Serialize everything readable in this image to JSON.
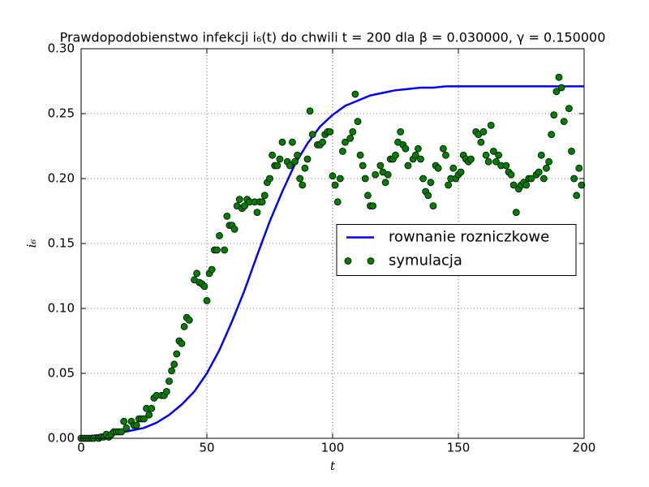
{
  "chart_data": {
    "type": "line",
    "title": "Prawdopodobienstwo infekcji i₆(t) do chwili t = 200 dla β = 0.030000, γ = 0.150000",
    "x_label": "t",
    "y_label": "i₆",
    "xlim": [
      0,
      200
    ],
    "xticks": [
      0,
      50,
      100,
      150,
      200
    ],
    "ylim": [
      0,
      0.3
    ],
    "yticks": [
      {
        "value": 0,
        "label": "0.00"
      },
      {
        "value": 0.05,
        "label": "0.05"
      },
      {
        "value": 0.1,
        "label": "0.10"
      },
      {
        "value": 0.15,
        "label": "0.15"
      },
      {
        "value": 0.2,
        "label": "0.20"
      },
      {
        "value": 0.25,
        "label": "0.25"
      },
      {
        "value": 0.3,
        "label": "0.30"
      }
    ],
    "grid": true,
    "legend": "center right",
    "series": [
      {
        "name": "rownanie rozniczkowe",
        "color": "#0000ff",
        "x": [
          0,
          5,
          10,
          15,
          20,
          25,
          30,
          35,
          40,
          45,
          50,
          55,
          60,
          65,
          70,
          75,
          80,
          85,
          90,
          95,
          100,
          105,
          110,
          115,
          120,
          125,
          130,
          135,
          140,
          145,
          150,
          155,
          160,
          165,
          170,
          175,
          180,
          185,
          190,
          195,
          200
        ],
        "values": [
          0.001,
          0.002,
          0.003,
          0.004,
          0.006,
          0.008,
          0.012,
          0.018,
          0.026,
          0.036,
          0.05,
          0.068,
          0.09,
          0.114,
          0.141,
          0.167,
          0.19,
          0.211,
          0.227,
          0.24,
          0.249,
          0.256,
          0.26,
          0.264,
          0.266,
          0.268,
          0.269,
          0.27,
          0.27,
          0.271,
          0.271,
          0.271,
          0.271,
          0.271,
          0.271,
          0.271,
          0.271,
          0.271,
          0.271,
          0.271,
          0.271
        ]
      },
      {
        "name": "symulacja",
        "color": "#008000",
        "marker": "o",
        "x": [
          0,
          1,
          2,
          3,
          4,
          5,
          7,
          8,
          9,
          10,
          11,
          12,
          13,
          14,
          15,
          16,
          17,
          18,
          20,
          21,
          22,
          23,
          24,
          25,
          26,
          27,
          28,
          29,
          30,
          32,
          33,
          34,
          35,
          36,
          37,
          38,
          39,
          40,
          41,
          42,
          43,
          45,
          46,
          47,
          48,
          49,
          50,
          51,
          52,
          53,
          54,
          55,
          57,
          58,
          59,
          60,
          61,
          62,
          63,
          64,
          65,
          66,
          67,
          69,
          70,
          71,
          72,
          73,
          74,
          75,
          76,
          77,
          78,
          79,
          80,
          82,
          83,
          84,
          85,
          86,
          87,
          88,
          89,
          90,
          91,
          92,
          94,
          95,
          96,
          97,
          98,
          99,
          100,
          101,
          102,
          103,
          104,
          105,
          107,
          108,
          109,
          110,
          111,
          112,
          113,
          114,
          115,
          116,
          117,
          119,
          120,
          121,
          122,
          123,
          124,
          125,
          126,
          127,
          128,
          129,
          130,
          132,
          133,
          134,
          135,
          136,
          137,
          138,
          139,
          140,
          141,
          142,
          144,
          145,
          146,
          147,
          148,
          149,
          150,
          151,
          152,
          153,
          154,
          155,
          157,
          158,
          159,
          160,
          161,
          162,
          163,
          164,
          165,
          166,
          167,
          169,
          170,
          171,
          172,
          173,
          174,
          175,
          176,
          177,
          178,
          179,
          181,
          182,
          183,
          184,
          185,
          186,
          187,
          188,
          189,
          190,
          191,
          192,
          194,
          195,
          196,
          197,
          198,
          199
        ],
        "values": [
          0,
          0,
          0,
          0,
          0,
          0,
          0,
          0.001,
          0.001,
          0.003,
          0.001,
          0.003,
          0.005,
          0.005,
          0.005,
          0.005,
          0.013,
          0.008,
          0.013,
          0.01,
          0.01,
          0.015,
          0.015,
          0.015,
          0.023,
          0.018,
          0.023,
          0.031,
          0.033,
          0.033,
          0.033,
          0.036,
          0.044,
          0.052,
          0.057,
          0.065,
          0.075,
          0.073,
          0.086,
          0.093,
          0.091,
          0.122,
          0.127,
          0.12,
          0.119,
          0.117,
          0.106,
          0.127,
          0.13,
          0.145,
          0.145,
          0.156,
          0.145,
          0.171,
          0.164,
          0.164,
          0.161,
          0.179,
          0.184,
          0.177,
          0.179,
          0.184,
          0.182,
          0.182,
          0.174,
          0.182,
          0.182,
          0.187,
          0.197,
          0.2,
          0.218,
          0.21,
          0.21,
          0.215,
          0.228,
          0.213,
          0.21,
          0.228,
          0.213,
          0.218,
          0.2,
          0.195,
          0.208,
          0.215,
          0.252,
          0.234,
          0.226,
          0.226,
          0.228,
          0.234,
          0.236,
          0.236,
          0.202,
          0.195,
          0.182,
          0.2,
          0.221,
          0.228,
          0.231,
          0.236,
          0.265,
          0.244,
          0.218,
          0.21,
          0.2,
          0.187,
          0.179,
          0.179,
          0.203,
          0.21,
          0.205,
          0.197,
          0.203,
          0.215,
          0.215,
          0.218,
          0.228,
          0.236,
          0.226,
          0.223,
          0.21,
          0.215,
          0.218,
          0.223,
          0.215,
          0.2,
          0.19,
          0.187,
          0.197,
          0.179,
          0.21,
          0.208,
          0.223,
          0.218,
          0.195,
          0.2,
          0.208,
          0.2,
          0.203,
          0.205,
          0.218,
          0.215,
          0.213,
          0.215,
          0.236,
          0.234,
          0.228,
          0.236,
          0.218,
          0.213,
          0.241,
          0.221,
          0.213,
          0.218,
          0.21,
          0.21,
          0.205,
          0.203,
          0.195,
          0.174,
          0.192,
          0.195,
          0.197,
          0.195,
          0.2,
          0.2,
          0.203,
          0.205,
          0.218,
          0.2,
          0.208,
          0.213,
          0.234,
          0.249,
          0.267,
          0.278,
          0.27,
          0.244,
          0.254,
          0.221,
          0.2,
          0.187,
          0.208,
          0.195
        ]
      }
    ]
  }
}
